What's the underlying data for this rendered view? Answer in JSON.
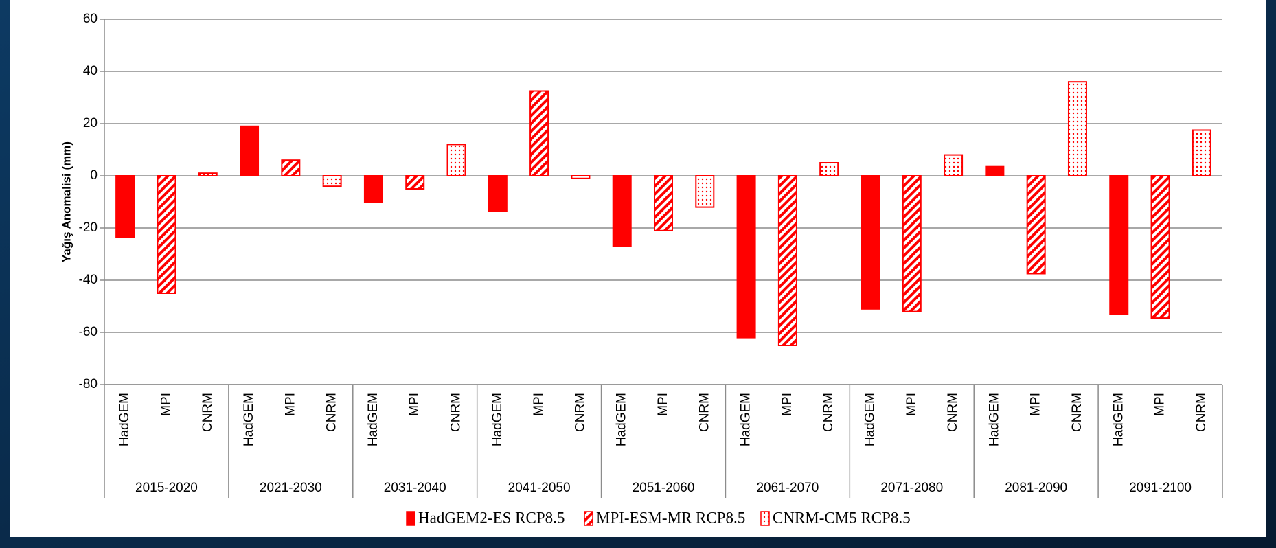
{
  "chart_data": {
    "type": "grouped_bar",
    "ylabel": "Yağış Anomalisi (mm)",
    "categories": [
      "2015-2020",
      "2021-2030",
      "2031-2040",
      "2041-2050",
      "2051-2060",
      "2061-2070",
      "2071-2080",
      "2081-2090",
      "2091-2100"
    ],
    "sub_labels": [
      "HadGEM",
      "MPI",
      "CNRM"
    ],
    "series": [
      {
        "name": "HadGEM2-ES RCP8.5",
        "color": "#ff0000",
        "pattern": "solid",
        "values": [
          -23.5,
          19,
          -10,
          -13.5,
          -27,
          -62,
          -51,
          3.5,
          -53
        ]
      },
      {
        "name": "MPI-ESM-MR RCP8.5",
        "color": "#ff0000",
        "pattern": "hatch",
        "values": [
          -45,
          6,
          -5,
          32.5,
          -21,
          -65,
          -52,
          -37.5,
          -54.5
        ]
      },
      {
        "name": "CNRM-CM5 RCP8.5",
        "color": "#ff0000",
        "pattern": "dots",
        "values": [
          1,
          -4,
          12,
          -1,
          -12,
          5,
          8,
          36,
          17.5
        ]
      }
    ],
    "ylim": [
      -80,
      60
    ],
    "yticks": [
      -80,
      -60,
      -40,
      -20,
      0,
      20,
      40,
      60
    ],
    "grid": true,
    "legend": "bottom"
  }
}
